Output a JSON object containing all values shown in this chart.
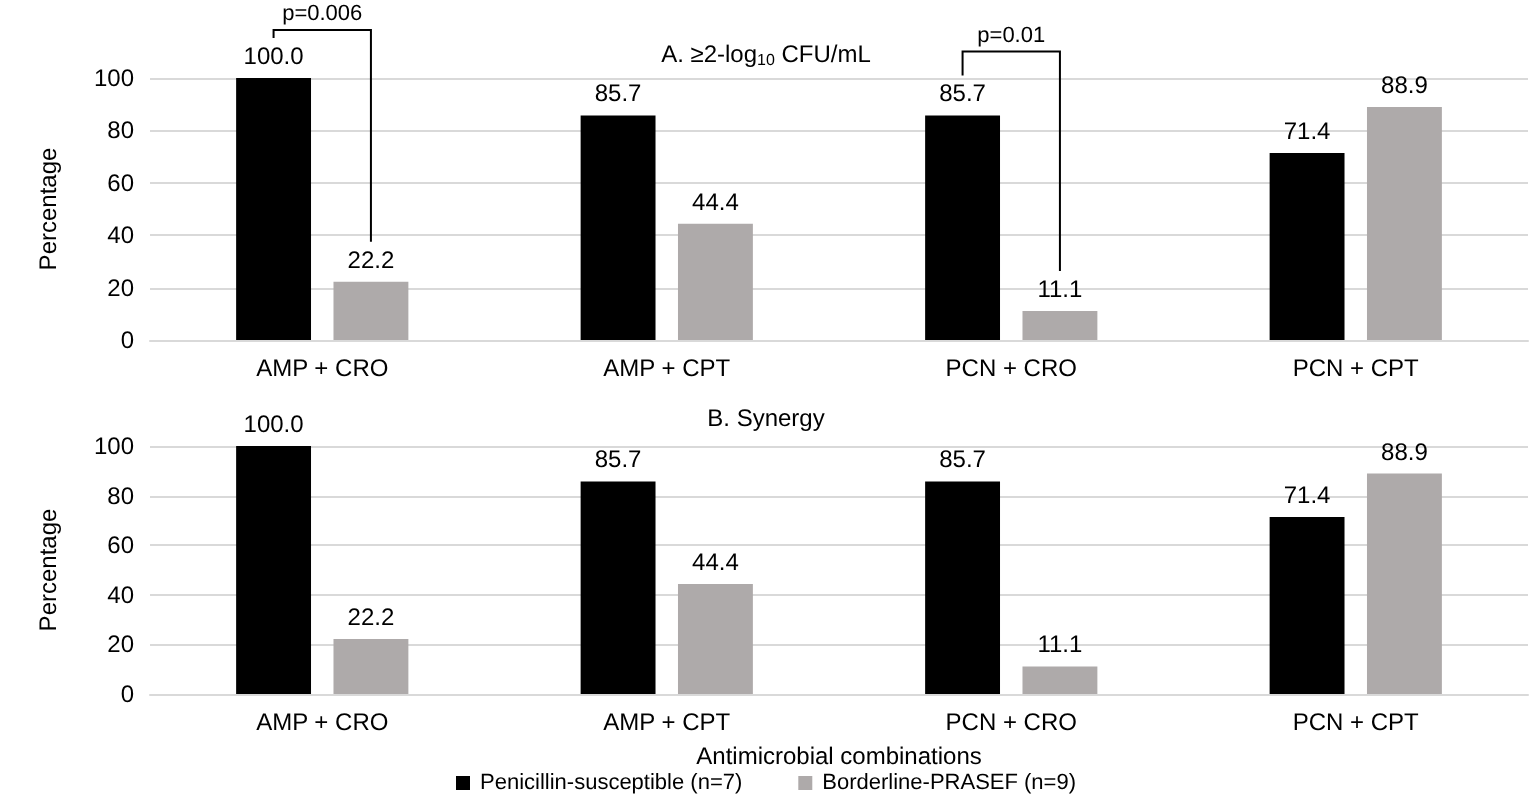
{
  "chart_data": [
    {
      "type": "bar",
      "title": "A. ≥2-log$_{10}$ CFU/mL",
      "ylabel": "Percentage",
      "categories": [
        "AMP + CRO",
        "AMP + CPT",
        "PCN + CRO",
        "PCN + CPT"
      ],
      "series": [
        {
          "color": "#000000",
          "values": [
            100.0,
            85.7,
            85.7,
            71.4
          ],
          "value_labels": [
            "100.0",
            "85.7",
            "85.7",
            "71.4"
          ]
        },
        {
          "color": "#aeaaaa",
          "values": [
            22.2,
            44.4,
            11.1,
            88.9
          ],
          "value_labels": [
            "22.2",
            "44.4",
            "11.1",
            "88.9"
          ]
        }
      ],
      "ylim": [
        0,
        100
      ],
      "yticks": [
        0,
        20,
        40,
        60,
        80,
        100
      ],
      "grid": "y",
      "legend": false,
      "annotations": [
        "p=0.006",
        "p=0.01"
      ]
    },
    {
      "type": "bar",
      "title": "B. Synergy",
      "ylabel": "Percentage",
      "xlabel": "Antimicrobial combinations",
      "categories": [
        "AMP + CRO",
        "AMP + CPT",
        "PCN + CRO",
        "PCN + CPT"
      ],
      "series": [
        {
          "name": "Penicillin-susceptible (n=7)",
          "color": "#000000",
          "values": [
            100.0,
            85.7,
            85.7,
            71.4
          ],
          "value_labels": [
            "100.0",
            "85.7",
            "85.7",
            "71.4"
          ]
        },
        {
          "name": "Borderline-PRASEF (n=9)",
          "color": "#aeaaaa",
          "values": [
            22.2,
            44.4,
            11.1,
            88.9
          ],
          "value_labels": [
            "22.2",
            "44.4",
            "11.1",
            "88.9"
          ]
        }
      ],
      "ylim": [
        0,
        100
      ],
      "yticks": [
        0,
        20,
        40,
        60,
        80,
        100
      ],
      "grid": "y",
      "legend": "bottom"
    }
  ]
}
